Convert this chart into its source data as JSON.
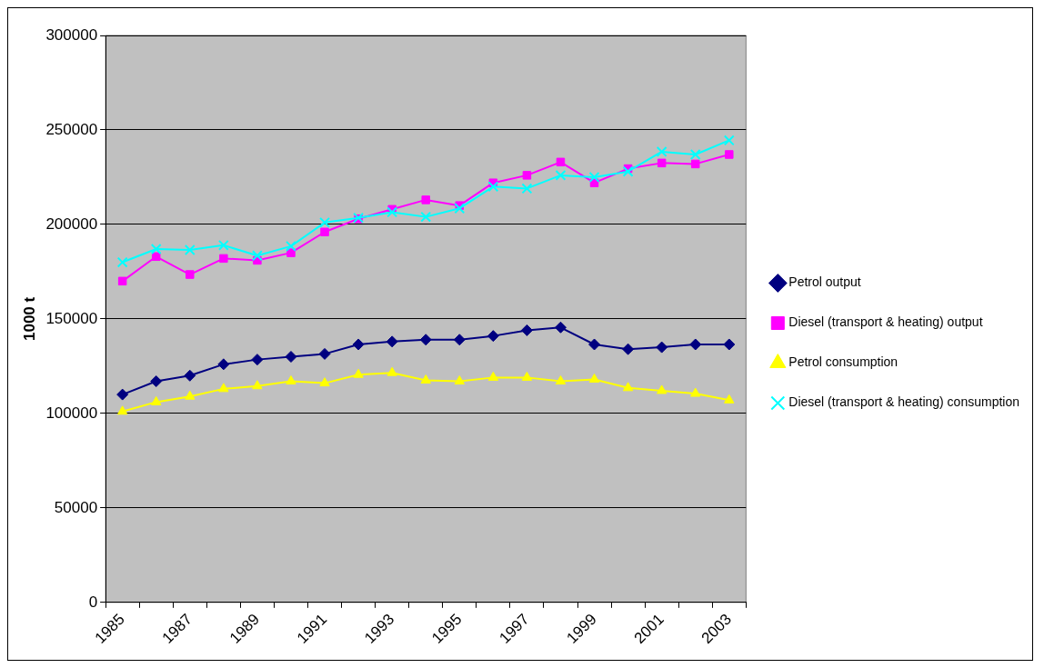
{
  "chart_data": {
    "type": "line",
    "ylabel": "1000 t",
    "categories": [
      "1985",
      null,
      "1987",
      null,
      "1989",
      null,
      "1991",
      null,
      "1993",
      null,
      "1995",
      null,
      "1997",
      null,
      "1999",
      null,
      "2001",
      null,
      "2003"
    ],
    "series": [
      {
        "name": "Petrol output",
        "color": "#000080",
        "marker": "diamond",
        "values": [
          110000,
          117000,
          120000,
          126000,
          128500,
          130000,
          131500,
          136500,
          138000,
          139000,
          139000,
          141000,
          144000,
          145500,
          136500,
          134000,
          135000,
          136500,
          136500
        ]
      },
      {
        "name": "Diesel (transport & heating) output",
        "color": "#ff00ff",
        "marker": "square",
        "values": [
          170000,
          183000,
          173500,
          182000,
          181000,
          185000,
          196000,
          203000,
          208000,
          213000,
          210000,
          222000,
          226000,
          233000,
          222000,
          229500,
          232500,
          232000,
          237000
        ]
      },
      {
        "name": "Petrol consumption",
        "color": "#ffff00",
        "marker": "triangle",
        "values": [
          101000,
          106000,
          109000,
          113000,
          114500,
          117000,
          116000,
          120500,
          121500,
          117500,
          117000,
          119000,
          119000,
          117000,
          118000,
          113500,
          112000,
          110500,
          107000
        ]
      },
      {
        "name": "Diesel (transport & heating) consumption",
        "color": "#00ffff",
        "marker": "cross",
        "values": [
          180000,
          187000,
          186500,
          189000,
          183500,
          188500,
          201000,
          203500,
          206500,
          204000,
          208500,
          220000,
          219000,
          226000,
          225000,
          228000,
          238500,
          237000,
          244500
        ]
      }
    ],
    "ylim": [
      0,
      300000
    ],
    "yticks": [
      0,
      50000,
      100000,
      150000,
      200000,
      250000,
      300000
    ],
    "grid": "y",
    "legend": "right",
    "line_style": "solid"
  }
}
